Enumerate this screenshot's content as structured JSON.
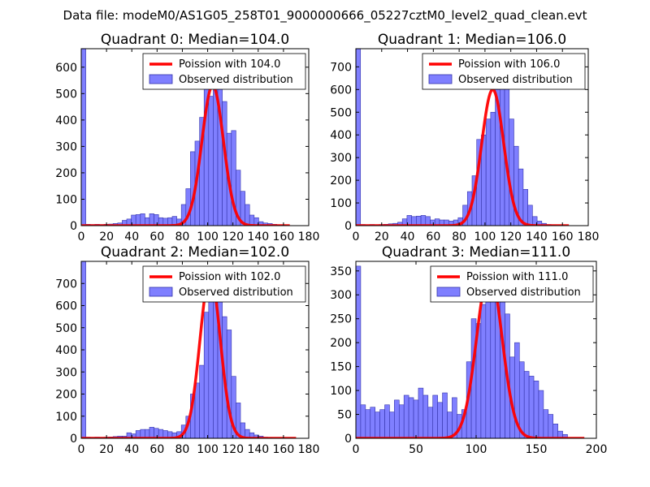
{
  "figure": {
    "suptitle": "Data file: modeM0/AS1G05_258T01_9000000666_05227cztM0_level2_quad_clean.evt",
    "bar_color": "#7f7fff",
    "bar_edge": "#3333aa",
    "curve_color": "#ff0000"
  },
  "chart_data": [
    {
      "type": "bar",
      "title": "Quadrant 0: Median=104.0",
      "xlim": [
        0,
        180
      ],
      "ylim": [
        0,
        670
      ],
      "xticks": [
        "0",
        "20",
        "40",
        "60",
        "80",
        "100",
        "120",
        "140",
        "160",
        "180"
      ],
      "yticks": [
        "0",
        "100",
        "200",
        "300",
        "400",
        "500",
        "600"
      ],
      "xtick_values": [
        0,
        20,
        40,
        60,
        80,
        100,
        120,
        140,
        160,
        180
      ],
      "ytick_values": [
        0,
        100,
        200,
        300,
        400,
        500,
        600
      ],
      "median": 104.0,
      "legend": [
        "Poission with 104.0",
        "Observed distribution"
      ],
      "bin_width": 3.6,
      "bins": [
        {
          "x": 0,
          "y": 670
        },
        {
          "x": 3.6,
          "y": 5
        },
        {
          "x": 7.2,
          "y": 4
        },
        {
          "x": 10.8,
          "y": 5
        },
        {
          "x": 14.4,
          "y": 4
        },
        {
          "x": 18,
          "y": 5
        },
        {
          "x": 21.6,
          "y": 6
        },
        {
          "x": 25.2,
          "y": 8
        },
        {
          "x": 28.8,
          "y": 10
        },
        {
          "x": 32.4,
          "y": 20
        },
        {
          "x": 36,
          "y": 25
        },
        {
          "x": 39.6,
          "y": 40
        },
        {
          "x": 43.2,
          "y": 42
        },
        {
          "x": 46.8,
          "y": 45
        },
        {
          "x": 50.4,
          "y": 30
        },
        {
          "x": 54,
          "y": 45
        },
        {
          "x": 57.6,
          "y": 42
        },
        {
          "x": 61.2,
          "y": 30
        },
        {
          "x": 64.8,
          "y": 28
        },
        {
          "x": 68.4,
          "y": 30
        },
        {
          "x": 72,
          "y": 35
        },
        {
          "x": 75.6,
          "y": 25
        },
        {
          "x": 79.2,
          "y": 80
        },
        {
          "x": 82.8,
          "y": 140
        },
        {
          "x": 86.4,
          "y": 280
        },
        {
          "x": 90,
          "y": 320
        },
        {
          "x": 93.6,
          "y": 410
        },
        {
          "x": 97.2,
          "y": 520
        },
        {
          "x": 100.8,
          "y": 490
        },
        {
          "x": 104.4,
          "y": 600
        },
        {
          "x": 108,
          "y": 520
        },
        {
          "x": 111.6,
          "y": 470
        },
        {
          "x": 115.2,
          "y": 350
        },
        {
          "x": 118.8,
          "y": 360
        },
        {
          "x": 122.4,
          "y": 210
        },
        {
          "x": 126,
          "y": 130
        },
        {
          "x": 129.6,
          "y": 80
        },
        {
          "x": 133.2,
          "y": 40
        },
        {
          "x": 136.8,
          "y": 30
        },
        {
          "x": 140.4,
          "y": 15
        },
        {
          "x": 144,
          "y": 10
        },
        {
          "x": 147.6,
          "y": 8
        },
        {
          "x": 151.2,
          "y": 5
        },
        {
          "x": 154.8,
          "y": 3
        },
        {
          "x": 158.4,
          "y": 2
        }
      ],
      "curve": {
        "mean": 104,
        "sigma": 8.5,
        "peak": 530,
        "x0": 0,
        "x1": 165
      }
    },
    {
      "type": "bar",
      "title": "Quadrant 1: Median=106.0",
      "xlim": [
        0,
        180
      ],
      "ylim": [
        0,
        780
      ],
      "xticks": [
        "0",
        "20",
        "40",
        "60",
        "80",
        "100",
        "120",
        "140",
        "160",
        "180"
      ],
      "yticks": [
        "0",
        "100",
        "200",
        "300",
        "400",
        "500",
        "600",
        "700"
      ],
      "xtick_values": [
        0,
        20,
        40,
        60,
        80,
        100,
        120,
        140,
        160,
        180
      ],
      "ytick_values": [
        0,
        100,
        200,
        300,
        400,
        500,
        600,
        700
      ],
      "median": 106.0,
      "legend": [
        "Poission with 106.0",
        "Observed distribution"
      ],
      "bin_width": 3.6,
      "bins": [
        {
          "x": 0,
          "y": 780
        },
        {
          "x": 3.6,
          "y": 5
        },
        {
          "x": 7.2,
          "y": 4
        },
        {
          "x": 10.8,
          "y": 5
        },
        {
          "x": 14.4,
          "y": 4
        },
        {
          "x": 18,
          "y": 5
        },
        {
          "x": 21.6,
          "y": 6
        },
        {
          "x": 25.2,
          "y": 8
        },
        {
          "x": 28.8,
          "y": 10
        },
        {
          "x": 32.4,
          "y": 15
        },
        {
          "x": 36,
          "y": 30
        },
        {
          "x": 39.6,
          "y": 45
        },
        {
          "x": 43.2,
          "y": 40
        },
        {
          "x": 46.8,
          "y": 42
        },
        {
          "x": 50.4,
          "y": 45
        },
        {
          "x": 54,
          "y": 40
        },
        {
          "x": 57.6,
          "y": 25
        },
        {
          "x": 61.2,
          "y": 30
        },
        {
          "x": 64.8,
          "y": 25
        },
        {
          "x": 68.4,
          "y": 25
        },
        {
          "x": 72,
          "y": 20
        },
        {
          "x": 75.6,
          "y": 25
        },
        {
          "x": 79.2,
          "y": 35
        },
        {
          "x": 82.8,
          "y": 90
        },
        {
          "x": 86.4,
          "y": 150
        },
        {
          "x": 90,
          "y": 220
        },
        {
          "x": 93.6,
          "y": 380
        },
        {
          "x": 97.2,
          "y": 400
        },
        {
          "x": 100.8,
          "y": 470
        },
        {
          "x": 104.4,
          "y": 500
        },
        {
          "x": 108,
          "y": 600
        },
        {
          "x": 111.6,
          "y": 700
        },
        {
          "x": 115.2,
          "y": 620
        },
        {
          "x": 118.8,
          "y": 470
        },
        {
          "x": 122.4,
          "y": 350
        },
        {
          "x": 126,
          "y": 250
        },
        {
          "x": 129.6,
          "y": 160
        },
        {
          "x": 133.2,
          "y": 90
        },
        {
          "x": 136.8,
          "y": 40
        },
        {
          "x": 140.4,
          "y": 20
        },
        {
          "x": 144,
          "y": 10
        },
        {
          "x": 147.6,
          "y": 5
        },
        {
          "x": 151.2,
          "y": 3
        }
      ],
      "curve": {
        "mean": 106,
        "sigma": 8.5,
        "peak": 600,
        "x0": 0,
        "x1": 165
      }
    },
    {
      "type": "bar",
      "title": "Quadrant 2: Median=102.0",
      "xlim": [
        0,
        180
      ],
      "ylim": [
        0,
        800
      ],
      "xticks": [
        "0",
        "20",
        "40",
        "60",
        "80",
        "100",
        "120",
        "140",
        "160",
        "180"
      ],
      "yticks": [
        "0",
        "100",
        "200",
        "300",
        "400",
        "500",
        "600",
        "700"
      ],
      "xtick_values": [
        0,
        20,
        40,
        60,
        80,
        100,
        120,
        140,
        160,
        180
      ],
      "ytick_values": [
        0,
        100,
        200,
        300,
        400,
        500,
        600,
        700
      ],
      "median": 102.0,
      "legend": [
        "Poission with 102.0",
        "Observed distribution"
      ],
      "bin_width": 3.6,
      "bins": [
        {
          "x": 0,
          "y": 800
        },
        {
          "x": 3.6,
          "y": 5
        },
        {
          "x": 7.2,
          "y": 4
        },
        {
          "x": 10.8,
          "y": 5
        },
        {
          "x": 14.4,
          "y": 4
        },
        {
          "x": 18,
          "y": 5
        },
        {
          "x": 21.6,
          "y": 6
        },
        {
          "x": 25.2,
          "y": 8
        },
        {
          "x": 28.8,
          "y": 10
        },
        {
          "x": 32.4,
          "y": 10
        },
        {
          "x": 36,
          "y": 25
        },
        {
          "x": 39.6,
          "y": 20
        },
        {
          "x": 43.2,
          "y": 35
        },
        {
          "x": 46.8,
          "y": 40
        },
        {
          "x": 50.4,
          "y": 40
        },
        {
          "x": 54,
          "y": 50
        },
        {
          "x": 57.6,
          "y": 45
        },
        {
          "x": 61.2,
          "y": 40
        },
        {
          "x": 64.8,
          "y": 35
        },
        {
          "x": 68.4,
          "y": 30
        },
        {
          "x": 72,
          "y": 25
        },
        {
          "x": 75.6,
          "y": 30
        },
        {
          "x": 79.2,
          "y": 60
        },
        {
          "x": 82.8,
          "y": 100
        },
        {
          "x": 86.4,
          "y": 200
        },
        {
          "x": 90,
          "y": 250
        },
        {
          "x": 93.6,
          "y": 330
        },
        {
          "x": 97.2,
          "y": 570
        },
        {
          "x": 100.8,
          "y": 630
        },
        {
          "x": 104.4,
          "y": 750
        },
        {
          "x": 108,
          "y": 720
        },
        {
          "x": 111.6,
          "y": 550
        },
        {
          "x": 115.2,
          "y": 490
        },
        {
          "x": 118.8,
          "y": 280
        },
        {
          "x": 122.4,
          "y": 160
        },
        {
          "x": 126,
          "y": 70
        },
        {
          "x": 129.6,
          "y": 40
        },
        {
          "x": 133.2,
          "y": 25
        },
        {
          "x": 136.8,
          "y": 15
        },
        {
          "x": 140.4,
          "y": 10
        },
        {
          "x": 144,
          "y": 5
        },
        {
          "x": 147.6,
          "y": 3
        }
      ],
      "curve": {
        "mean": 102,
        "sigma": 8.0,
        "peak": 740,
        "x0": 0,
        "x1": 170
      }
    },
    {
      "type": "bar",
      "title": "Quadrant 3: Median=111.0",
      "xlim": [
        0,
        200
      ],
      "ylim": [
        0,
        370
      ],
      "xticks": [
        "0",
        "50",
        "100",
        "150",
        "200"
      ],
      "yticks": [
        "0",
        "50",
        "100",
        "150",
        "200",
        "250",
        "300",
        "350"
      ],
      "xtick_values": [
        0,
        50,
        100,
        150,
        200
      ],
      "ytick_values": [
        0,
        50,
        100,
        150,
        200,
        250,
        300,
        350
      ],
      "median": 111.0,
      "legend": [
        "Poission with 111.0",
        "Observed distribution"
      ],
      "bin_width": 4.0,
      "bins": [
        {
          "x": 0,
          "y": 360
        },
        {
          "x": 4,
          "y": 70
        },
        {
          "x": 8,
          "y": 60
        },
        {
          "x": 12,
          "y": 65
        },
        {
          "x": 16,
          "y": 55
        },
        {
          "x": 20,
          "y": 60
        },
        {
          "x": 24,
          "y": 70
        },
        {
          "x": 28,
          "y": 55
        },
        {
          "x": 32,
          "y": 80
        },
        {
          "x": 36,
          "y": 70
        },
        {
          "x": 40,
          "y": 90
        },
        {
          "x": 44,
          "y": 85
        },
        {
          "x": 48,
          "y": 80
        },
        {
          "x": 52,
          "y": 105
        },
        {
          "x": 56,
          "y": 90
        },
        {
          "x": 60,
          "y": 65
        },
        {
          "x": 64,
          "y": 90
        },
        {
          "x": 68,
          "y": 75
        },
        {
          "x": 72,
          "y": 95
        },
        {
          "x": 76,
          "y": 55
        },
        {
          "x": 80,
          "y": 85
        },
        {
          "x": 84,
          "y": 50
        },
        {
          "x": 88,
          "y": 60
        },
        {
          "x": 92,
          "y": 160
        },
        {
          "x": 96,
          "y": 250
        },
        {
          "x": 100,
          "y": 240
        },
        {
          "x": 104,
          "y": 280
        },
        {
          "x": 108,
          "y": 340
        },
        {
          "x": 112,
          "y": 290
        },
        {
          "x": 116,
          "y": 330
        },
        {
          "x": 120,
          "y": 300
        },
        {
          "x": 124,
          "y": 260
        },
        {
          "x": 128,
          "y": 170
        },
        {
          "x": 132,
          "y": 200
        },
        {
          "x": 136,
          "y": 160
        },
        {
          "x": 140,
          "y": 140
        },
        {
          "x": 144,
          "y": 130
        },
        {
          "x": 148,
          "y": 120
        },
        {
          "x": 152,
          "y": 100
        },
        {
          "x": 156,
          "y": 60
        },
        {
          "x": 160,
          "y": 50
        },
        {
          "x": 164,
          "y": 30
        },
        {
          "x": 168,
          "y": 15
        },
        {
          "x": 172,
          "y": 8
        }
      ],
      "curve": {
        "mean": 111,
        "sigma": 10.5,
        "peak": 350,
        "x0": 0,
        "x1": 190
      }
    }
  ]
}
